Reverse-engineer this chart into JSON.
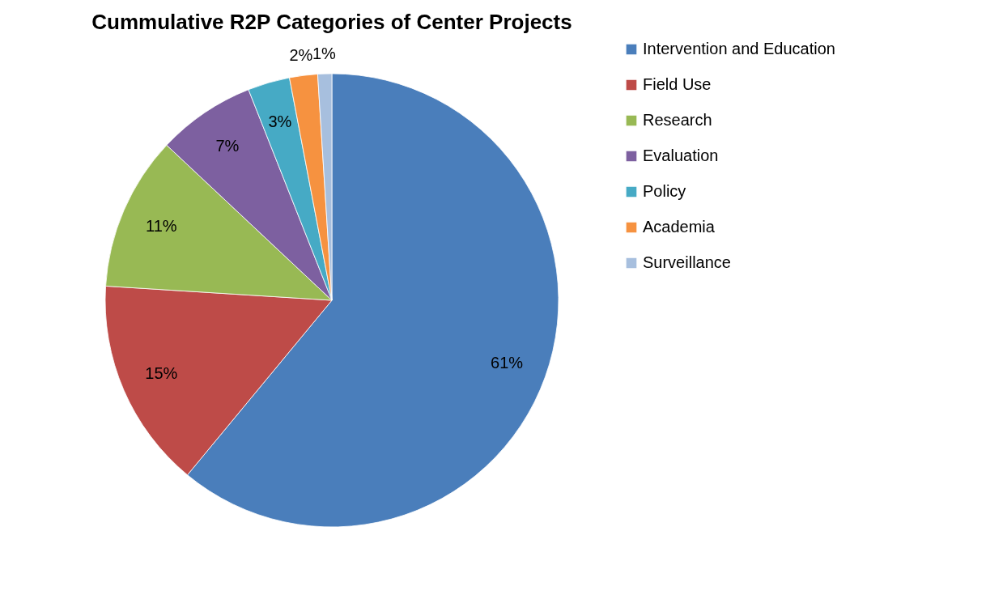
{
  "chart_data": {
    "type": "pie",
    "title": "Cummulative R2P Categories of Center Projects",
    "categories": [
      "Intervention and Education",
      "Field Use",
      "Research",
      "Evaluation",
      "Policy",
      "Academia",
      "Surveillance"
    ],
    "values": [
      61,
      15,
      11,
      7,
      3,
      2,
      1
    ],
    "colors": [
      "#4a7ebb",
      "#be4b48",
      "#98b954",
      "#7d60a0",
      "#46aac5",
      "#f69240",
      "#a7bfde"
    ],
    "value_labels": [
      "61%",
      "15%",
      "11%",
      "7%",
      "3%",
      "2%",
      "1%"
    ],
    "legend": "right"
  }
}
